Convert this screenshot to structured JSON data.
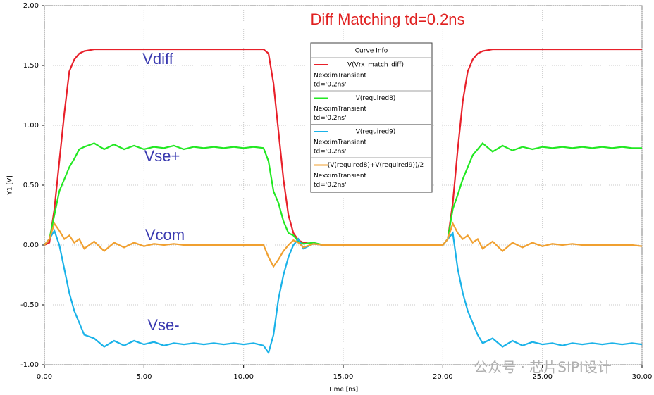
{
  "chart_data": {
    "type": "line",
    "title": "Diff Matching td=0.2ns",
    "xlabel": "Time [ns]",
    "ylabel": "Y1 [V]",
    "legend_title": "Curve Info",
    "watermark": "公众号 · 芯片SIPI设计",
    "annotations": [
      "Vdiff",
      "Vse+",
      "Vcom",
      "Vse-"
    ],
    "xlim": [
      0,
      30
    ],
    "ylim": [
      -1,
      2
    ],
    "xticks": [
      {
        "value": 0,
        "label": "0.00"
      },
      {
        "value": 5,
        "label": "5.00"
      },
      {
        "value": 10,
        "label": "10.00"
      },
      {
        "value": 15,
        "label": "15.00"
      },
      {
        "value": 20,
        "label": "20.00"
      },
      {
        "value": 25,
        "label": "25.00"
      },
      {
        "value": 30,
        "label": "30.00"
      }
    ],
    "yticks": [
      {
        "value": -1,
        "label": "-1.00"
      },
      {
        "value": -0.5,
        "label": "-0.50"
      },
      {
        "value": 0,
        "label": "0.00"
      },
      {
        "value": 0.5,
        "label": "0.50"
      },
      {
        "value": 1,
        "label": "1.00"
      },
      {
        "value": 1.5,
        "label": "1.50"
      },
      {
        "value": 2,
        "label": "2.00"
      }
    ],
    "grid": true,
    "x": [
      0,
      0.25,
      0.5,
      0.75,
      1,
      1.25,
      1.5,
      1.75,
      2,
      2.5,
      3,
      3.5,
      4,
      4.5,
      5,
      5.5,
      6,
      6.5,
      7,
      7.5,
      8,
      8.5,
      9,
      9.5,
      10,
      10.5,
      11,
      11.25,
      11.5,
      11.75,
      12,
      12.25,
      12.5,
      12.75,
      13,
      13.5,
      14,
      15,
      16,
      17,
      18,
      19,
      20,
      20.25,
      20.5,
      20.75,
      21,
      21.25,
      21.5,
      21.75,
      22,
      22.5,
      23,
      23.5,
      24,
      24.5,
      25,
      25.5,
      26,
      26.5,
      27,
      27.5,
      28,
      28.5,
      29,
      29.5,
      30
    ],
    "series": [
      {
        "name": "V(Vrx_match_diff)",
        "source": "NexximTransient",
        "params": "td='0.2ns'",
        "color": "#e8202a",
        "values": [
          0,
          0.02,
          0.3,
          0.7,
          1.1,
          1.45,
          1.55,
          1.6,
          1.62,
          1.635,
          1.635,
          1.635,
          1.635,
          1.635,
          1.635,
          1.635,
          1.635,
          1.635,
          1.635,
          1.635,
          1.635,
          1.635,
          1.635,
          1.635,
          1.635,
          1.635,
          1.635,
          1.6,
          1.35,
          0.95,
          0.55,
          0.25,
          0.1,
          0.04,
          0.02,
          0.01,
          0,
          0,
          0,
          0,
          0,
          0,
          0,
          0.05,
          0.35,
          0.8,
          1.2,
          1.45,
          1.55,
          1.6,
          1.62,
          1.635,
          1.635,
          1.635,
          1.635,
          1.635,
          1.635,
          1.635,
          1.635,
          1.635,
          1.635,
          1.635,
          1.635,
          1.635,
          1.635,
          1.635,
          1.635
        ]
      },
      {
        "name": "V(required8)",
        "source": "NexximTransient",
        "params": "td='0.2ns'",
        "color": "#22e822",
        "values": [
          0,
          0.05,
          0.25,
          0.45,
          0.55,
          0.65,
          0.72,
          0.8,
          0.82,
          0.85,
          0.8,
          0.84,
          0.8,
          0.83,
          0.8,
          0.82,
          0.81,
          0.83,
          0.8,
          0.82,
          0.81,
          0.82,
          0.81,
          0.82,
          0.81,
          0.82,
          0.81,
          0.7,
          0.45,
          0.35,
          0.2,
          0.1,
          0.08,
          0.03,
          0.01,
          0.02,
          0,
          0,
          0,
          0,
          0,
          0,
          0,
          0.05,
          0.3,
          0.42,
          0.55,
          0.65,
          0.75,
          0.8,
          0.85,
          0.78,
          0.83,
          0.79,
          0.82,
          0.8,
          0.82,
          0.81,
          0.82,
          0.81,
          0.82,
          0.81,
          0.82,
          0.81,
          0.82,
          0.81,
          0.81
        ]
      },
      {
        "name": "V(required9)",
        "source": "NexximTransient",
        "params": "td='0.2ns'",
        "color": "#1ab2e8",
        "values": [
          0,
          0.05,
          0.12,
          0,
          -0.2,
          -0.4,
          -0.55,
          -0.65,
          -0.75,
          -0.78,
          -0.85,
          -0.8,
          -0.84,
          -0.8,
          -0.83,
          -0.81,
          -0.84,
          -0.82,
          -0.83,
          -0.82,
          -0.83,
          -0.82,
          -0.83,
          -0.82,
          -0.83,
          -0.82,
          -0.84,
          -0.9,
          -0.75,
          -0.45,
          -0.25,
          -0.1,
          0,
          0.05,
          -0.03,
          0.01,
          0,
          0,
          0,
          0,
          0,
          0,
          0,
          0.05,
          0.1,
          -0.2,
          -0.4,
          -0.55,
          -0.65,
          -0.75,
          -0.82,
          -0.78,
          -0.85,
          -0.8,
          -0.84,
          -0.81,
          -0.83,
          -0.82,
          -0.84,
          -0.82,
          -0.83,
          -0.82,
          -0.83,
          -0.82,
          -0.83,
          -0.82,
          -0.83
        ]
      },
      {
        "name": "(V(required8)+V(required9))/2",
        "source": "NexximTransient",
        "params": "td='0.2ns'",
        "color": "#f0a030",
        "values": [
          0,
          0.05,
          0.18,
          0.12,
          0.05,
          0.08,
          0.02,
          0.05,
          -0.03,
          0.03,
          -0.05,
          0.02,
          -0.02,
          0.02,
          -0.01,
          0.01,
          0,
          0.01,
          0,
          0,
          0,
          0,
          0,
          0,
          0,
          0,
          0,
          -0.1,
          -0.18,
          -0.12,
          -0.05,
          0,
          0.04,
          0.02,
          -0.02,
          0.01,
          0,
          0,
          0,
          0,
          0,
          0,
          0,
          0.05,
          0.18,
          0.1,
          0.05,
          0.08,
          0.02,
          0.05,
          -0.03,
          0.03,
          -0.05,
          0.02,
          -0.02,
          0.02,
          -0.01,
          0.01,
          0,
          0.01,
          0,
          0,
          0,
          0,
          0,
          0,
          -0.01
        ]
      }
    ]
  }
}
